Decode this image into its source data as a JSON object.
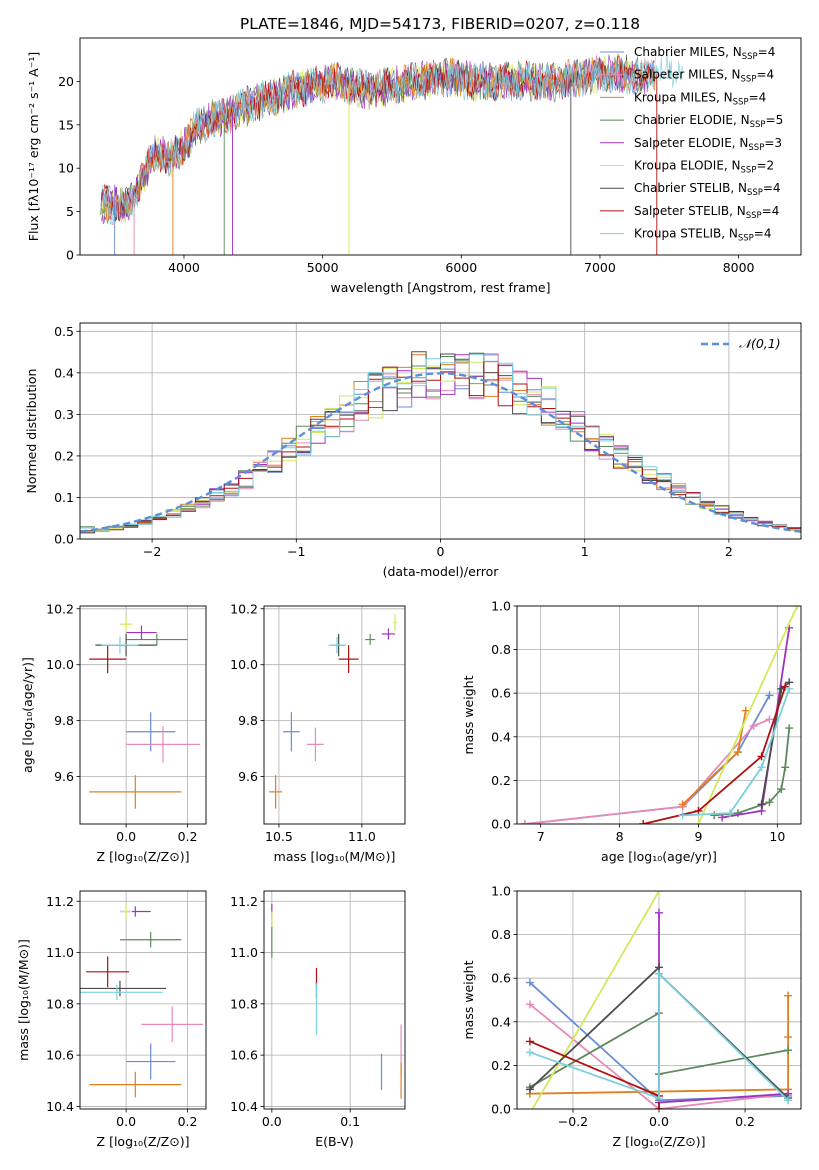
{
  "figure": {
    "title": "PLATE=1846, MJD=54173, FIBERID=0207, z=0.118"
  },
  "models": [
    {
      "name": "Chabrier MILES",
      "nssp": "4",
      "color": "#6b8cd8"
    },
    {
      "name": "Salpeter MILES",
      "nssp": "4",
      "color": "#e889b8"
    },
    {
      "name": "Kroupa MILES",
      "nssp": "4",
      "color": "#e0801f"
    },
    {
      "name": "Chabrier ELODIE",
      "nssp": "5",
      "color": "#5c8a5c"
    },
    {
      "name": "Salpeter ELODIE",
      "nssp": "3",
      "color": "#a032c0"
    },
    {
      "name": "Kroupa ELODIE",
      "nssp": "2",
      "color": "#d4e85a"
    },
    {
      "name": "Chabrier STELIB",
      "nssp": "4",
      "color": "#4c4c4c"
    },
    {
      "name": "Salpeter STELIB",
      "nssp": "4",
      "color": "#b01010"
    },
    {
      "name": "Kroupa STELIB",
      "nssp": "4",
      "color": "#7ad0dc"
    }
  ],
  "chart_data": [
    {
      "id": "spectrum",
      "type": "line",
      "xlabel": "wavelength [Angstrom, rest frame]",
      "ylabel": "Flux [fλ10⁻¹⁷ erg cm⁻² s⁻¹ A⁻¹]",
      "xlim": [
        3250,
        8450
      ],
      "ylim": [
        0,
        25
      ],
      "xticks": [
        4000,
        5000,
        6000,
        7000,
        8000
      ],
      "yticks": [
        0,
        5,
        10,
        15,
        20
      ],
      "legend": "upper right",
      "continuum": [
        [
          3400,
          6.0
        ],
        [
          3600,
          5.5
        ],
        [
          3700,
          9
        ],
        [
          3800,
          12
        ],
        [
          3900,
          11
        ],
        [
          4000,
          12.5
        ],
        [
          4100,
          15
        ],
        [
          4300,
          16
        ],
        [
          4500,
          17.5
        ],
        [
          4700,
          18.5
        ],
        [
          4900,
          19.5
        ],
        [
          5100,
          20
        ],
        [
          5300,
          19
        ],
        [
          5500,
          19.5
        ],
        [
          5700,
          20
        ],
        [
          5900,
          20.5
        ],
        [
          6100,
          20
        ],
        [
          6300,
          20
        ],
        [
          6500,
          20
        ],
        [
          6700,
          20
        ],
        [
          6900,
          20.5
        ],
        [
          7100,
          21
        ],
        [
          7300,
          20.5
        ],
        [
          7600,
          21.5
        ]
      ],
      "dips": [
        [
          3500,
          0
        ],
        [
          3640,
          0
        ],
        [
          3920,
          0
        ],
        [
          4290,
          0
        ],
        [
          4350,
          0
        ],
        [
          5190,
          0
        ],
        [
          6790,
          0
        ],
        [
          7410,
          0
        ]
      ]
    },
    {
      "id": "residuals",
      "type": "histogram",
      "xlabel": "(data-model)/error",
      "ylabel": "Normed distribution",
      "xlim": [
        -2.5,
        2.5
      ],
      "ylim": [
        0,
        0.52
      ],
      "xticks": [
        -2,
        -1,
        0,
        1,
        2
      ],
      "yticks": [
        0.0,
        0.1,
        0.2,
        0.3,
        0.4,
        0.5
      ],
      "grid": true,
      "legend": "upper right",
      "reference_label": "𝒩(0,1)",
      "bin_width": 0.1
    },
    {
      "id": "age_vs_Z",
      "type": "errorbar",
      "xlabel": "Z [log₁₀(Z/Z⊙)]",
      "ylabel": "age  [log₁₀(age/yr)]",
      "xlim": [
        -0.15,
        0.26
      ],
      "ylim": [
        9.43,
        10.21
      ],
      "xticks": [
        0.0,
        0.2
      ],
      "yticks": [
        9.6,
        9.8,
        10.0,
        10.2
      ],
      "grid": true,
      "points": [
        {
          "x": 0.08,
          "y": 9.76,
          "xerr": 0.08,
          "yerr": 0.07
        },
        {
          "x": 0.12,
          "y": 9.715,
          "xerr": 0.12,
          "yerr": 0.065
        },
        {
          "x": 0.03,
          "y": 9.545,
          "xerr": 0.15,
          "yerr": 0.06
        },
        {
          "x": 0.1,
          "y": 10.09,
          "xerr": 0.1,
          "yerr": 0.02
        },
        {
          "x": 0.05,
          "y": 10.115,
          "xerr": 0.05,
          "yerr": 0.025
        },
        {
          "x": 0.0,
          "y": 10.145,
          "xerr": 0.02,
          "yerr": 0.03
        },
        {
          "x": 0.0,
          "y": 10.07,
          "xerr": 0.1,
          "yerr": 0.04
        },
        {
          "x": -0.06,
          "y": 10.02,
          "xerr": 0.06,
          "yerr": 0.05
        },
        {
          "x": -0.02,
          "y": 10.07,
          "xerr": 0.06,
          "yerr": 0.03
        }
      ]
    },
    {
      "id": "age_vs_mass",
      "type": "errorbar",
      "xlabel": "mass [log₁₀(M/M⊙)]",
      "ylabel": "",
      "xlim": [
        10.41,
        11.26
      ],
      "ylim": [
        9.43,
        10.21
      ],
      "xticks": [
        10.5,
        11.0
      ],
      "yticks": [
        9.6,
        9.8,
        10.0,
        10.2
      ],
      "grid": true,
      "points": [
        {
          "x": 10.575,
          "y": 9.76,
          "xerr": 0.05,
          "yerr": 0.07
        },
        {
          "x": 10.72,
          "y": 9.715,
          "xerr": 0.05,
          "yerr": 0.06
        },
        {
          "x": 10.48,
          "y": 9.545,
          "xerr": 0.04,
          "yerr": 0.06
        },
        {
          "x": 11.05,
          "y": 10.09,
          "xerr": 0.03,
          "yerr": 0.02
        },
        {
          "x": 11.16,
          "y": 10.11,
          "xerr": 0.04,
          "yerr": 0.02
        },
        {
          "x": 11.2,
          "y": 10.15,
          "xerr": 0.01,
          "yerr": 0.03
        },
        {
          "x": 10.86,
          "y": 10.07,
          "xerr": 0.04,
          "yerr": 0.04
        },
        {
          "x": 10.92,
          "y": 10.02,
          "xerr": 0.06,
          "yerr": 0.05
        },
        {
          "x": 10.85,
          "y": 10.07,
          "xerr": 0.05,
          "yerr": 0.03
        }
      ]
    },
    {
      "id": "weight_vs_age",
      "type": "line",
      "xlabel": "age  [log₁₀(age/yr)]",
      "ylabel": "mass weight",
      "xlim": [
        6.7,
        10.3
      ],
      "ylim": [
        0,
        1.0
      ],
      "xticks": [
        7,
        8,
        9,
        10
      ],
      "yticks": [
        0.0,
        0.2,
        0.4,
        0.6,
        0.8,
        1.0
      ],
      "grid": true,
      "series": [
        {
          "points": [
            [
              6.8,
              0.0
            ],
            [
              8.8,
              0.08
            ],
            [
              9.5,
              0.33
            ],
            [
              9.9,
              0.59
            ]
          ]
        },
        {
          "points": [
            [
              6.8,
              0.0
            ],
            [
              8.8,
              0.08
            ],
            [
              9.7,
              0.45
            ],
            [
              9.9,
              0.48
            ]
          ]
        },
        {
          "points": [
            [
              8.8,
              0.09
            ],
            [
              9.5,
              0.33
            ],
            [
              9.6,
              0.52
            ]
          ]
        },
        {
          "points": [
            [
              9.2,
              0.04
            ],
            [
              9.5,
              0.05
            ],
            [
              9.9,
              0.1
            ],
            [
              10.05,
              0.16
            ],
            [
              10.1,
              0.26
            ],
            [
              10.15,
              0.44
            ]
          ]
        },
        {
          "points": [
            [
              9.3,
              0.03
            ],
            [
              9.8,
              0.06
            ],
            [
              10.15,
              0.9
            ]
          ]
        },
        {
          "points": [
            [
              9.0,
              0.0
            ],
            [
              10.25,
              1.0
            ]
          ]
        },
        {
          "points": [
            [
              9.8,
              0.09
            ],
            [
              10.05,
              0.62
            ],
            [
              10.15,
              0.65
            ]
          ]
        },
        {
          "points": [
            [
              8.3,
              0.0
            ],
            [
              9.0,
              0.06
            ],
            [
              9.8,
              0.31
            ],
            [
              10.1,
              0.63
            ]
          ]
        },
        {
          "points": [
            [
              8.8,
              0.04
            ],
            [
              9.4,
              0.05
            ],
            [
              9.8,
              0.26
            ],
            [
              10.15,
              0.62
            ]
          ]
        }
      ]
    },
    {
      "id": "mass_vs_Z",
      "type": "errorbar",
      "xlabel": "Z [log₁₀(Z/Z⊙)]",
      "ylabel": "mass [log₁₀(M/M⊙)]",
      "xlim": [
        -0.15,
        0.26
      ],
      "ylim": [
        10.39,
        11.24
      ],
      "xticks": [
        0.0,
        0.2
      ],
      "yticks": [
        10.4,
        10.6,
        10.8,
        11.0,
        11.2
      ],
      "grid": true,
      "points": [
        {
          "x": 0.08,
          "y": 10.575,
          "xerr": 0.08,
          "yerr": 0.07
        },
        {
          "x": 0.15,
          "y": 10.72,
          "xerr": 0.1,
          "yerr": 0.07
        },
        {
          "x": 0.03,
          "y": 10.485,
          "xerr": 0.15,
          "yerr": 0.05
        },
        {
          "x": 0.08,
          "y": 11.05,
          "xerr": 0.1,
          "yerr": 0.03
        },
        {
          "x": 0.03,
          "y": 11.16,
          "xerr": 0.05,
          "yerr": 0.02
        },
        {
          "x": 0.0,
          "y": 11.16,
          "xerr": 0.02,
          "yerr": 0.03
        },
        {
          "x": -0.02,
          "y": 10.86,
          "xerr": 0.15,
          "yerr": 0.03
        },
        {
          "x": -0.06,
          "y": 10.925,
          "xerr": 0.07,
          "yerr": 0.06
        },
        {
          "x": -0.03,
          "y": 10.845,
          "xerr": 0.15,
          "yerr": 0.03
        }
      ]
    },
    {
      "id": "mass_vs_ebv",
      "type": "errorbar",
      "xlabel": "E(B-V)",
      "ylabel": "",
      "xlim": [
        -0.01,
        0.17
      ],
      "ylim": [
        10.39,
        11.24
      ],
      "xticks": [
        0.0,
        0.1
      ],
      "yticks": [
        10.4,
        10.6,
        10.8,
        11.0,
        11.2
      ],
      "grid": true,
      "points": [
        {
          "x": 0.14,
          "y": 10.535,
          "xerr": 0,
          "yerr": 0.07
        },
        {
          "x": 0.165,
          "y": 10.62,
          "xerr": 0,
          "yerr": 0.1
        },
        {
          "x": 0.165,
          "y": 10.5,
          "xerr": 0,
          "yerr": 0.07
        },
        {
          "x": 0.0,
          "y": 11.05,
          "xerr": 0,
          "yerr": 0.07
        },
        {
          "x": 0.0,
          "y": 11.16,
          "xerr": 0,
          "yerr": 0.03
        },
        {
          "x": 0.0,
          "y": 11.13,
          "xerr": 0,
          "yerr": 0.03
        },
        {
          "x": 0.057,
          "y": 10.85,
          "xerr": 0,
          "yerr": 0.03
        },
        {
          "x": 0.057,
          "y": 10.9,
          "xerr": 0,
          "yerr": 0.04
        },
        {
          "x": 0.057,
          "y": 10.78,
          "xerr": 0,
          "yerr": 0.1
        }
      ]
    },
    {
      "id": "weight_vs_Z",
      "type": "line",
      "xlabel": "Z [log₁₀(Z/Z⊙)]",
      "ylabel": "mass weight",
      "xlim": [
        -0.33,
        0.33
      ],
      "ylim": [
        0,
        1.0
      ],
      "xticks": [
        -0.2,
        0.0,
        0.2
      ],
      "yticks": [
        0.0,
        0.2,
        0.4,
        0.6,
        0.8,
        1.0
      ],
      "grid": true,
      "series": [
        {
          "points": [
            [
              -0.3,
              0.58
            ],
            [
              0.0,
              0.04
            ],
            [
              0.3,
              0.06
            ]
          ]
        },
        {
          "points": [
            [
              -0.3,
              0.48
            ],
            [
              0.0,
              0.0
            ],
            [
              0.3,
              0.07
            ]
          ]
        },
        {
          "points": [
            [
              -0.3,
              0.07
            ],
            [
              0.3,
              0.09
            ],
            [
              0.3,
              0.52
            ],
            [
              0.3,
              0.33
            ]
          ]
        },
        {
          "points": [
            [
              -0.3,
              0.1
            ],
            [
              0.0,
              0.44
            ],
            [
              0.0,
              0.16
            ],
            [
              0.3,
              0.27
            ]
          ]
        },
        {
          "points": [
            [
              0.0,
              0.9
            ],
            [
              0.0,
              0.03
            ],
            [
              0.3,
              0.07
            ]
          ]
        },
        {
          "points": [
            [
              -0.3,
              -0.02
            ],
            [
              0.0,
              1.0
            ]
          ]
        },
        {
          "points": [
            [
              -0.3,
              0.09
            ],
            [
              0.0,
              0.65
            ],
            [
              0.0,
              0.62
            ],
            [
              0.3,
              0.05
            ]
          ]
        },
        {
          "points": [
            [
              -0.3,
              0.31
            ],
            [
              0.0,
              0.06
            ],
            [
              0.0,
              0.0
            ]
          ]
        },
        {
          "points": [
            [
              -0.3,
              0.26
            ],
            [
              0.0,
              0.05
            ],
            [
              0.0,
              0.62
            ],
            [
              0.3,
              0.04
            ]
          ]
        }
      ]
    }
  ]
}
